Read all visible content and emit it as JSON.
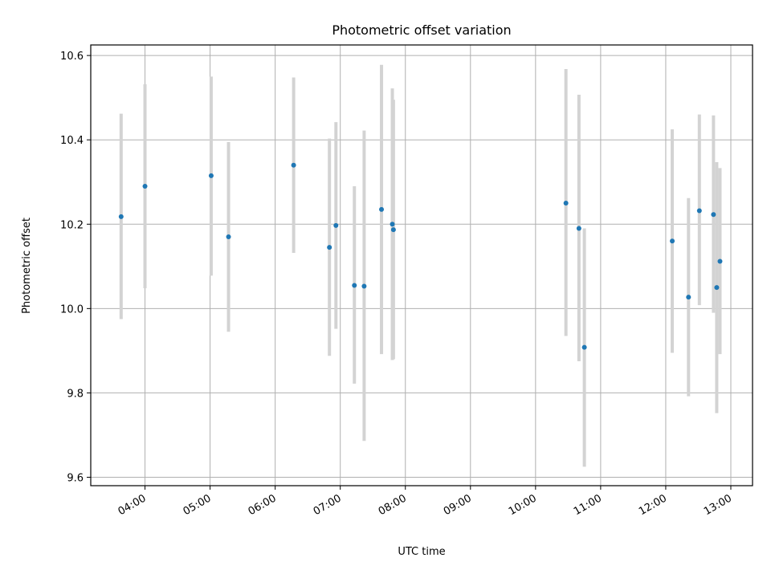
{
  "chart_data": {
    "type": "scatter",
    "title": "Photometric offset variation",
    "xlabel": "UTC time",
    "ylabel": "Photometric offset",
    "x_axis_kind": "time",
    "xlim": [
      "03:10",
      "13:20"
    ],
    "ylim": [
      9.58,
      10.625
    ],
    "grid": true,
    "legend": "none",
    "x_ticks": [
      "04:00",
      "05:00",
      "06:00",
      "07:00",
      "08:00",
      "09:00",
      "10:00",
      "11:00",
      "12:00",
      "13:00"
    ],
    "y_ticks": [
      "9.6",
      "9.8",
      "10.0",
      "10.2",
      "10.4",
      "10.6"
    ],
    "colors": {
      "point": "#1f77b4",
      "errorbar": "#d3d3d3",
      "grid": "#b0b0b0"
    },
    "series": [
      {
        "x": [
          "03:38",
          "04:00",
          "05:01",
          "05:17",
          "06:17",
          "06:50",
          "06:56",
          "07:13",
          "07:22",
          "07:38",
          "07:48",
          "07:49",
          "10:28",
          "10:40",
          "10:45",
          "12:06",
          "12:21",
          "12:31",
          "12:44",
          "12:47",
          "12:50"
        ],
        "y": [
          10.218,
          10.29,
          10.315,
          10.17,
          10.34,
          10.145,
          10.197,
          10.055,
          10.053,
          10.235,
          10.2,
          10.187,
          10.25,
          10.19,
          9.908,
          10.16,
          10.027,
          10.232,
          10.223,
          10.05,
          10.112
        ],
        "y_low": [
          9.975,
          10.048,
          10.078,
          9.945,
          10.132,
          9.888,
          9.952,
          9.822,
          9.686,
          9.892,
          9.878,
          9.88,
          9.935,
          9.875,
          9.625,
          9.895,
          9.792,
          10.008,
          9.99,
          9.752,
          9.892
        ],
        "y_high": [
          10.462,
          10.532,
          10.55,
          10.395,
          10.548,
          10.403,
          10.442,
          10.29,
          10.422,
          10.578,
          10.522,
          10.495,
          10.568,
          10.507,
          10.19,
          10.425,
          10.262,
          10.46,
          10.458,
          10.347,
          10.333
        ]
      }
    ]
  }
}
